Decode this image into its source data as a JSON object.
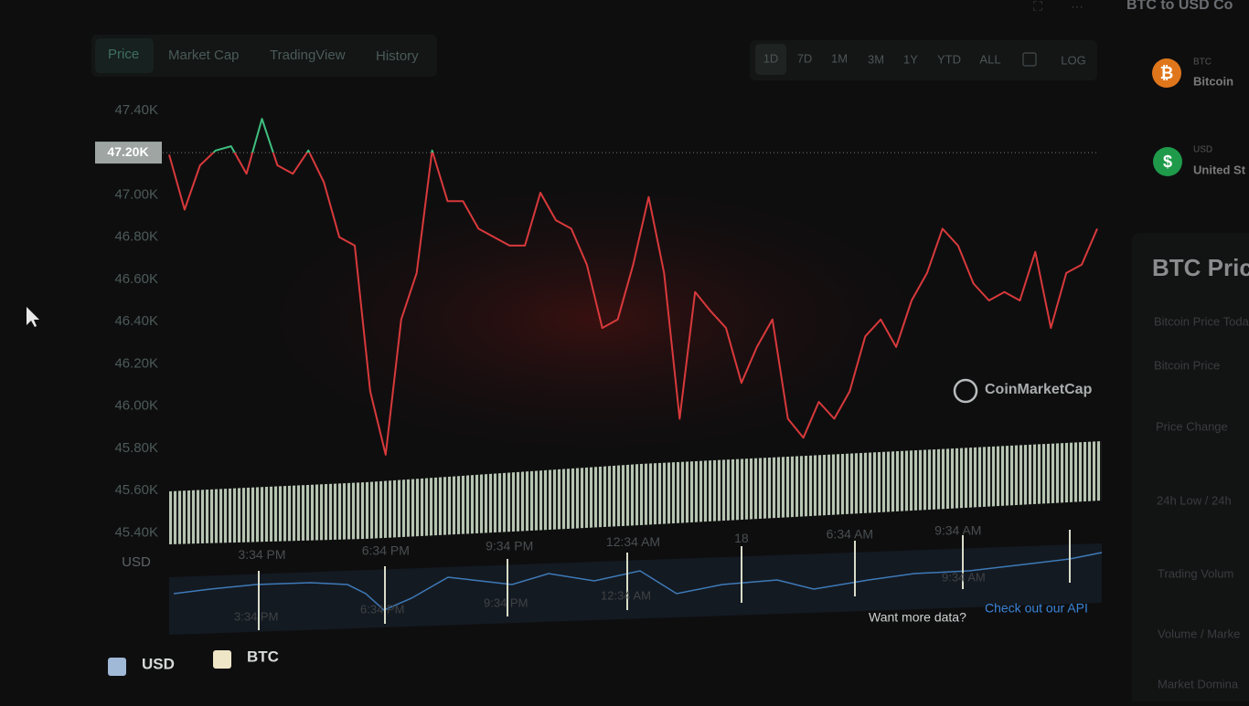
{
  "tabs": [
    "Price",
    "Market Cap",
    "TradingView",
    "History"
  ],
  "ranges": [
    "1D",
    "7D",
    "1M",
    "3M",
    "1Y",
    "YTD",
    "ALL",
    "LOG"
  ],
  "converter": {
    "title": "BTC to USD Co",
    "items": [
      {
        "code": "BTC",
        "name": "Bitcoin"
      },
      {
        "code": "USD",
        "name": "United St"
      }
    ]
  },
  "stats": {
    "title": "BTC Price",
    "subtitle": "Bitcoin Price Toda",
    "rows": [
      "Bitcoin Price",
      "Price Change",
      "24h Low / 24h",
      "Trading Volum",
      "Volume / Marke",
      "Market Domina"
    ]
  },
  "chart_data": {
    "type": "line",
    "y_label": "USD",
    "ylim": [
      45350,
      47490
    ],
    "xlim": [
      0,
      60
    ],
    "yticks": [
      {
        "value": 47400,
        "label": "47.40K"
      },
      {
        "value": 47000,
        "label": "47.00K"
      },
      {
        "value": 46800,
        "label": "46.80K"
      },
      {
        "value": 46600,
        "label": "46.60K"
      },
      {
        "value": 46400,
        "label": "46.40K"
      },
      {
        "value": 46200,
        "label": "46.20K"
      },
      {
        "value": 46000,
        "label": "46.00K"
      },
      {
        "value": 45800,
        "label": "45.80K"
      },
      {
        "value": 45600,
        "label": "45.60K"
      },
      {
        "value": 45400,
        "label": "45.40K"
      }
    ],
    "price_marker": {
      "value": 47200,
      "label": "47.20K"
    },
    "xticks": [
      {
        "value": 6,
        "label": "3:34 PM"
      },
      {
        "value": 14,
        "label": "6:34 PM"
      },
      {
        "value": 22,
        "label": "9:34 PM"
      },
      {
        "value": 30,
        "label": "12:34 AM"
      },
      {
        "value": 37,
        "label": "18"
      },
      {
        "value": 44,
        "label": "6:34 AM"
      },
      {
        "value": 51,
        "label": "9:34 AM"
      }
    ],
    "series": [
      {
        "name": "USD",
        "color": "#d8393b",
        "above_color": "#3fbf7f",
        "values": [
          47190,
          46930,
          47140,
          47210,
          47230,
          47100,
          47360,
          47140,
          47100,
          47210,
          47060,
          46800,
          46760,
          46070,
          45770,
          46410,
          46630,
          47210,
          46970,
          46970,
          46840,
          46800,
          46760,
          46760,
          47010,
          46880,
          46840,
          46670,
          46370,
          46410,
          46670,
          46990,
          46630,
          45940,
          46540,
          46450,
          46370,
          46110,
          46280,
          46410,
          45940,
          45850,
          46020,
          45940,
          46070,
          46330,
          46410,
          46280,
          46500,
          46630,
          46840,
          46760,
          46580,
          46500,
          46540,
          46500,
          46730,
          46370,
          46630,
          46670,
          46840
        ]
      }
    ],
    "legend": [
      {
        "name": "USD",
        "color": "#9fb9d6"
      },
      {
        "name": "BTC",
        "color": "#efe6c7"
      }
    ],
    "navigator_labels": [
      "3:34 PM",
      "6:34 PM",
      "9:34 PM",
      "12:34 AM",
      "9:34 AM"
    ],
    "watermark": "CoinMarketCap"
  },
  "footer": {
    "text": "Want more data?",
    "link": "Check out our API"
  }
}
